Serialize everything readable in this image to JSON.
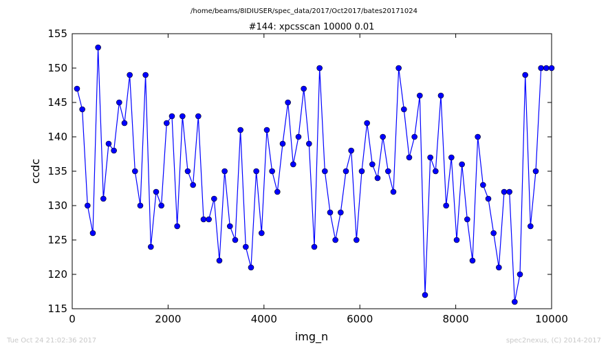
{
  "chart_data": {
    "type": "line",
    "supertitle": "/home/beams/8IDIUSER/spec_data/2017/Oct2017/bates20171024",
    "title": "#144: xpcsscan 10000 0.01",
    "xlabel": "img_n",
    "ylabel": "ccdc",
    "xlim": [
      0,
      10000
    ],
    "ylim": [
      115,
      155
    ],
    "xticks": [
      0,
      2000,
      4000,
      6000,
      8000,
      10000
    ],
    "yticks": [
      115,
      120,
      125,
      130,
      135,
      140,
      145,
      150,
      155
    ],
    "grid": false,
    "series_color": "#0000ff",
    "series": [
      {
        "x": [
          100,
          210,
          320,
          430,
          540,
          650,
          760,
          870,
          980,
          1090,
          1200,
          1310,
          1420,
          1530,
          1640,
          1750,
          1860,
          1970,
          2080,
          2190,
          2300,
          2410,
          2520,
          2630,
          2740,
          2850,
          2960,
          3070,
          3180,
          3290,
          3400,
          3510,
          3620,
          3730,
          3840,
          3950,
          4060,
          4170,
          4280,
          4390,
          4500,
          4610,
          4720,
          4830,
          4940,
          5050,
          5160,
          5270,
          5380,
          5490,
          5600,
          5710,
          5820,
          5930,
          6040,
          6150,
          6260,
          6370,
          6480,
          6590,
          6700,
          6810,
          6920,
          7030,
          7140,
          7250,
          7360,
          7470,
          7580,
          7690,
          7800,
          7910,
          8020,
          8130,
          8240,
          8350,
          8460,
          8570,
          8680,
          8790,
          8900,
          9010,
          9120,
          9230,
          9340,
          9450,
          9560,
          9670,
          9780,
          9890,
          10000
        ],
        "y": [
          147,
          144,
          130,
          126,
          153,
          131,
          139,
          138,
          145,
          142,
          149,
          135,
          130,
          149,
          124,
          132,
          130,
          142,
          143,
          127,
          143,
          135,
          133,
          143,
          128,
          128,
          131,
          122,
          135,
          127,
          125,
          141,
          124,
          121,
          135,
          126,
          141,
          135,
          132,
          139,
          145,
          136,
          140,
          147,
          139,
          124,
          150,
          135,
          129,
          125,
          129,
          135,
          138,
          125,
          135,
          142,
          136,
          134,
          140,
          135,
          132,
          150,
          144,
          137,
          140,
          146,
          117,
          137,
          135,
          146,
          130,
          137,
          125,
          136,
          128,
          122,
          140,
          133,
          131,
          126,
          121,
          132,
          132,
          116,
          120,
          149,
          127,
          135,
          150,
          150,
          150
        ]
      }
    ]
  },
  "footer": {
    "timestamp": "Tue Oct 24 21:02:36 2017",
    "credit": "spec2nexus, (C) 2014-2017"
  }
}
